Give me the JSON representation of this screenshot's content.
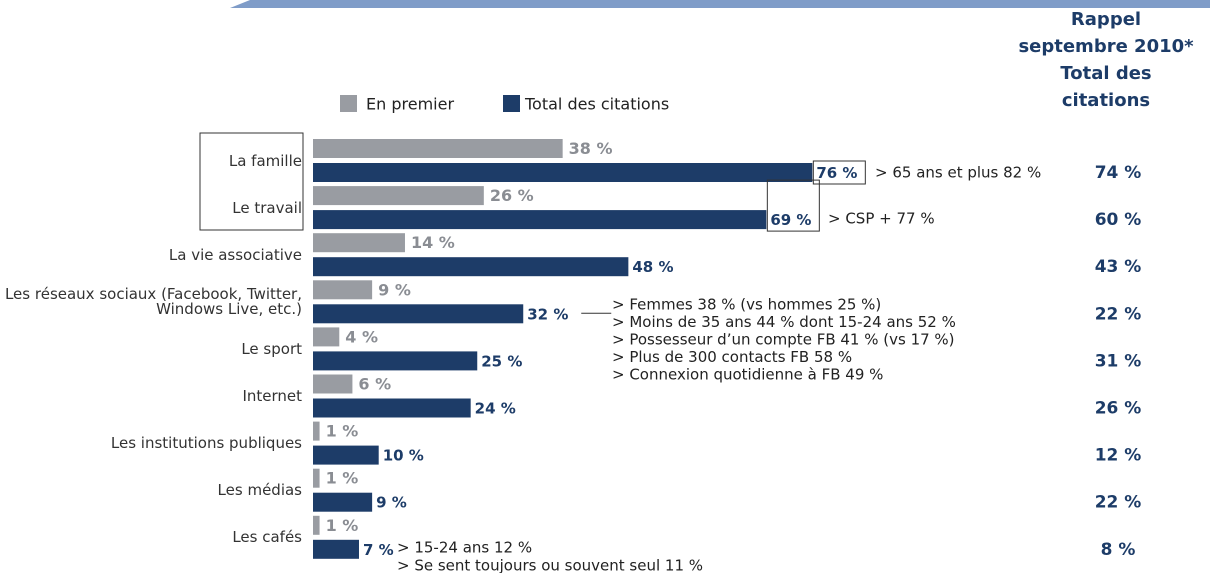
{
  "chart_data": {
    "type": "bar",
    "orientation": "horizontal",
    "categories": [
      "La famille",
      "Le travail",
      "La vie associative",
      "Les réseaux sociaux (Facebook, Twitter, Windows Live, etc.)",
      "Le sport",
      "Internet",
      "Les institutions publiques",
      "Les médias",
      "Les cafés"
    ],
    "series": [
      {
        "name": "En premier",
        "color": "#999ca2",
        "values": [
          38,
          26,
          14,
          9,
          4,
          6,
          1,
          1,
          1
        ],
        "value_labels": [
          "38 %",
          "26 %",
          "14 %",
          "9 %",
          "4 %",
          "6 %",
          "1 %",
          "1 %",
          "1 %"
        ]
      },
      {
        "name": "Total des citations",
        "color": "#1d3c68",
        "values": [
          76,
          69,
          48,
          32,
          25,
          24,
          10,
          9,
          7
        ],
        "value_labels": [
          "76 %",
          "69 %",
          "48 %",
          "32 %",
          "25 %",
          "24 %",
          "10 %",
          "9 %",
          "7 %"
        ]
      }
    ],
    "right_column": {
      "title_lines": [
        "Rappel",
        "septembre 2010*",
        "Total des",
        "citations"
      ],
      "values": [
        74,
        60,
        43,
        22,
        31,
        26,
        12,
        22,
        8
      ],
      "value_labels": [
        "74 %",
        "60 %",
        "43 %",
        "22 %",
        "31 %",
        "26 %",
        "12 %",
        "22 %",
        "8 %"
      ]
    },
    "annotations": [
      "> 65 ans et plus 82 %",
      "> CSP + 77 %",
      "> Femmes 38 % (vs hommes  25 %)",
      "> Moins de 35 ans 44 % dont 15-24 ans 52 %",
      "> Possesseur d’un compte FB 41 % (vs 17 %)",
      "> Plus de 300 contacts FB 58 %",
      "> Connexion quotidienne à FB 49 %",
      "> 15-24 ans 12 %",
      "> Se sent toujours ou souvent seul 11 %"
    ]
  }
}
